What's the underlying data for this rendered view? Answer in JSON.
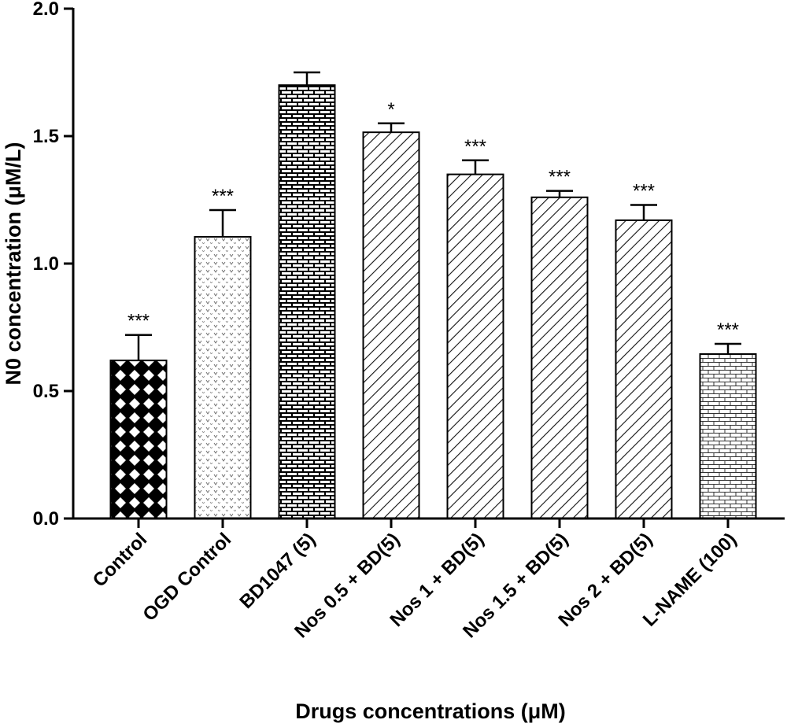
{
  "chart_data": {
    "type": "bar",
    "title": "",
    "xlabel": "Drugs concentrations (μM)",
    "ylabel": "N0 concentration (μM/L)",
    "ylim": [
      0,
      2.0
    ],
    "yticks": [
      "0.0",
      "0.5",
      "1.0",
      "1.5",
      "2.0"
    ],
    "ytick_values": [
      0,
      0.5,
      1.0,
      1.5,
      2.0
    ],
    "grid": false,
    "categories": [
      "Control",
      "OGD Control",
      "BD1047 (5)",
      "Nos 0.5 + BD(5)",
      "Nos 1 + BD(5)",
      "Nos 1.5 + BD(5)",
      "Nos 2 + BD(5)",
      "L-NAME (100)"
    ],
    "values": [
      0.62,
      1.105,
      1.7,
      1.515,
      1.35,
      1.26,
      1.17,
      0.645
    ],
    "errors": [
      0.1,
      0.105,
      0.05,
      0.035,
      0.055,
      0.025,
      0.06,
      0.04
    ],
    "significance": [
      "***",
      "***",
      "",
      "*",
      "***",
      "***",
      "***",
      "***"
    ],
    "patterns": [
      "diamond-crosshatch",
      "v-dots",
      "dark-brick",
      "diagonal-hatch",
      "diagonal-hatch",
      "diagonal-hatch",
      "diagonal-hatch",
      "light-brick"
    ]
  }
}
